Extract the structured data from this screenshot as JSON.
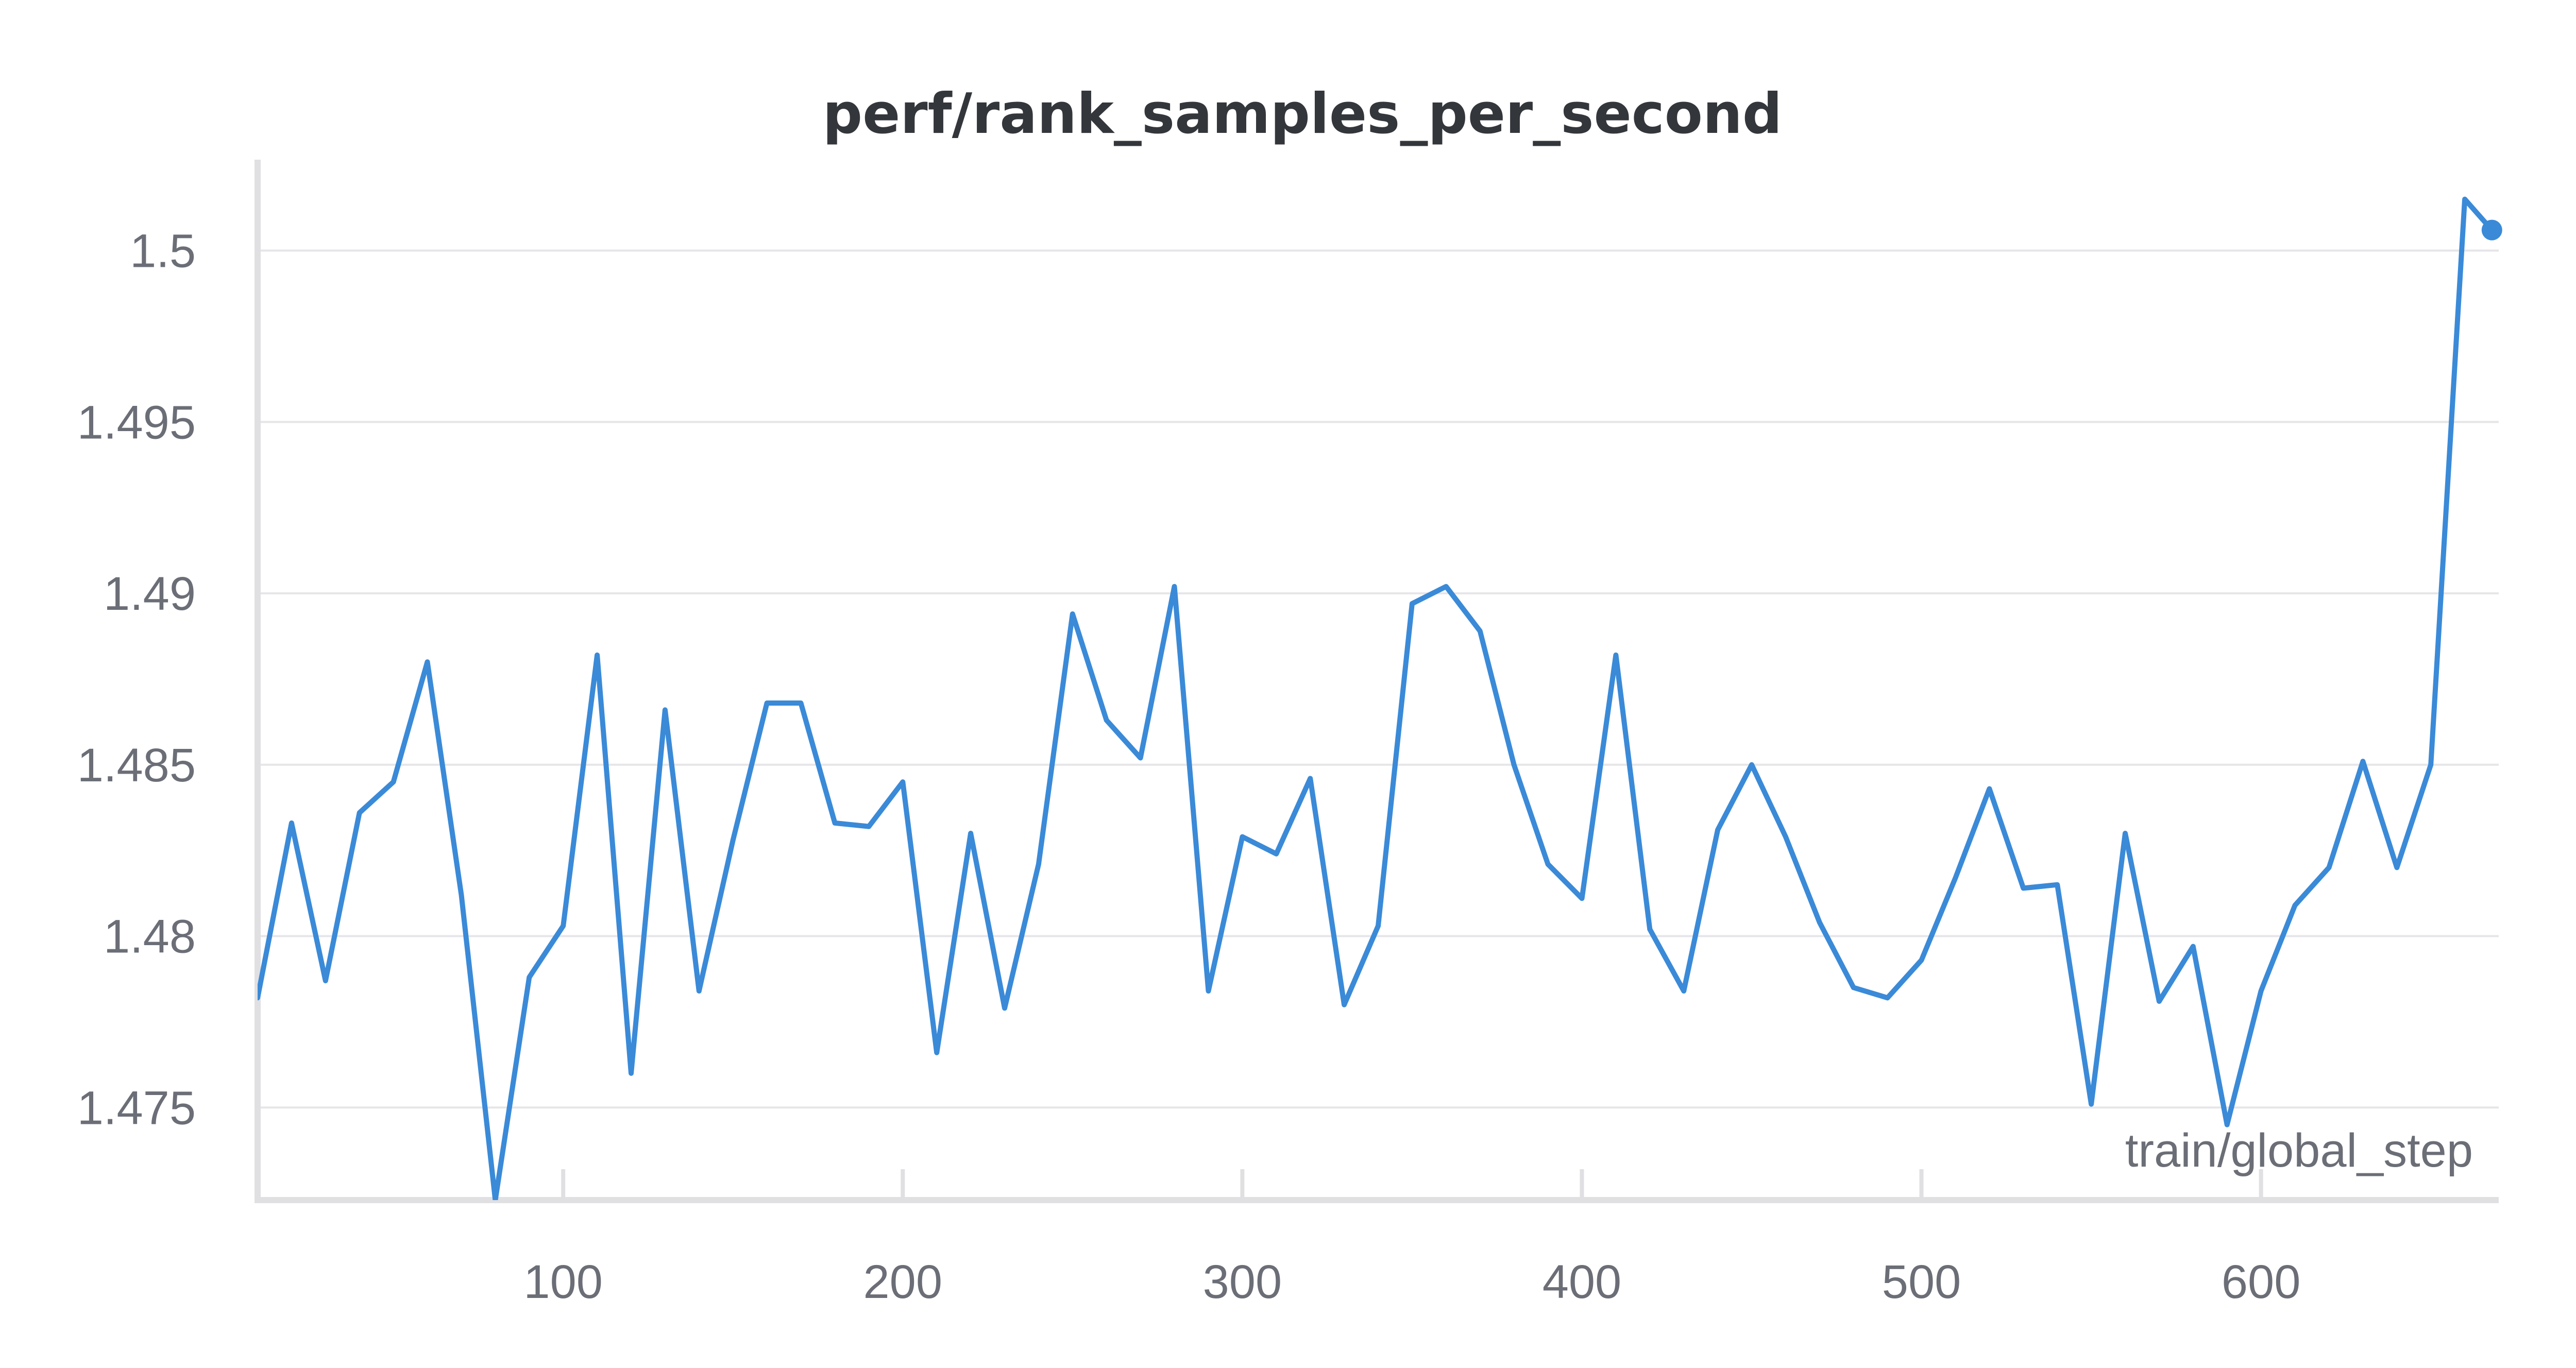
{
  "chart_data": {
    "type": "line",
    "title": "perf/rank_samples_per_second",
    "xlabel": "train/global_step",
    "ylabel": "",
    "xlim": [
      10,
      670
    ],
    "ylim": [
      1.4723,
      1.5013
    ],
    "x_ticks": [
      100,
      200,
      300,
      400,
      500,
      600
    ],
    "y_ticks": [
      1.475,
      1.48,
      1.485,
      1.49,
      1.495,
      1.5
    ],
    "y_tick_labels": [
      "1.475",
      "1.48",
      "1.485",
      "1.49",
      "1.495",
      "1.5"
    ],
    "grid": true,
    "series": [
      {
        "name": "perf/rank_samples_per_second",
        "color": "#3a8ad8",
        "x": [
          10,
          20,
          30,
          40,
          50,
          60,
          70,
          80,
          90,
          100,
          110,
          120,
          130,
          140,
          150,
          160,
          170,
          180,
          190,
          200,
          210,
          220,
          230,
          240,
          250,
          260,
          270,
          280,
          290,
          300,
          310,
          320,
          330,
          340,
          350,
          360,
          370,
          380,
          390,
          400,
          410,
          420,
          430,
          440,
          450,
          460,
          470,
          480,
          490,
          500,
          510,
          520,
          530,
          540,
          550,
          560,
          570,
          580,
          590,
          600,
          610,
          620,
          630,
          640,
          650,
          660,
          668
        ],
        "y": [
          1.4782,
          1.4833,
          1.4787,
          1.4836,
          1.4845,
          1.488,
          1.4812,
          1.4723,
          1.4788,
          1.4803,
          1.4882,
          1.476,
          1.4866,
          1.4784,
          1.4828,
          1.4868,
          1.4868,
          1.4833,
          1.4832,
          1.4845,
          1.4766,
          1.483,
          1.4779,
          1.4821,
          1.4894,
          1.4863,
          1.4852,
          1.4902,
          1.4784,
          1.4829,
          1.4824,
          1.4846,
          1.478,
          1.4803,
          1.4897,
          1.4902,
          1.4889,
          1.485,
          1.4821,
          1.4811,
          1.4882,
          1.4802,
          1.4784,
          1.4831,
          1.485,
          1.4829,
          1.4804,
          1.4785,
          1.4782,
          1.4793,
          1.4817,
          1.4843,
          1.4814,
          1.4815,
          1.4751,
          1.483,
          1.4781,
          1.4797,
          1.4745,
          1.4784,
          1.4809,
          1.482,
          1.4851,
          1.482,
          1.485,
          1.5015,
          1.5006
        ]
      }
    ]
  }
}
